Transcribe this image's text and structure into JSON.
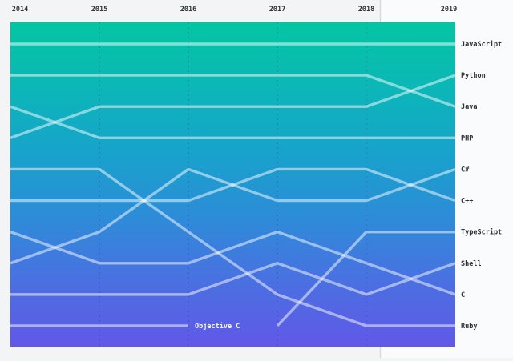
{
  "page": {
    "background_color": "#f3f4f6",
    "right_panel_background": "#fafbfc",
    "divider_color": "#d8dade"
  },
  "chart_data": {
    "type": "line",
    "subtype": "bump-rank",
    "title": "",
    "x_labels": [
      "2014",
      "2015",
      "2016",
      "2017",
      "2018",
      "2019"
    ],
    "rank_axis": {
      "min": 1,
      "max": 10,
      "direction": "down"
    },
    "grid": {
      "vertical_dashed_at": [
        "2015",
        "2016",
        "2017",
        "2018"
      ]
    },
    "legend_position": "right-edge-labels",
    "series": [
      {
        "name": "JavaScript",
        "ranks": [
          1,
          1,
          1,
          1,
          1,
          1
        ]
      },
      {
        "name": "Python",
        "ranks": [
          4,
          3,
          3,
          3,
          3,
          2
        ]
      },
      {
        "name": "Java",
        "ranks": [
          2,
          2,
          2,
          2,
          2,
          3
        ]
      },
      {
        "name": "PHP",
        "ranks": [
          3,
          4,
          4,
          4,
          4,
          4
        ]
      },
      {
        "name": "C#",
        "ranks": [
          8,
          7,
          5,
          6,
          6,
          5
        ]
      },
      {
        "name": "C++",
        "ranks": [
          6,
          6,
          6,
          5,
          5,
          6
        ]
      },
      {
        "name": "TypeScript",
        "ranks": [
          null,
          null,
          null,
          10,
          7,
          7
        ]
      },
      {
        "name": "Shell",
        "ranks": [
          9,
          9,
          9,
          8,
          9,
          8
        ]
      },
      {
        "name": "C",
        "ranks": [
          7,
          8,
          8,
          7,
          8,
          9
        ]
      },
      {
        "name": "Ruby",
        "ranks": [
          5,
          5,
          7,
          9,
          10,
          10
        ]
      },
      {
        "name": "Objective C",
        "ranks": [
          10,
          10,
          10,
          null,
          null,
          null
        ],
        "inline_label": true
      }
    ],
    "inline_label": {
      "text": "Objective C",
      "year": "2016",
      "rank": 10
    },
    "colors": {
      "gradient_stops": [
        "#04c5a2",
        "#0bb7b7",
        "#17a3cb",
        "#2d8cd8",
        "#4a70e1",
        "#6158e8"
      ],
      "line": "rgba(255,255,255,0.5)",
      "dashed_grid": "rgba(28,38,125,0.32)",
      "axis_label_text": "#2f3337",
      "right_label_text": "#2f3337",
      "inline_label_text": "#f4f7ff"
    }
  }
}
